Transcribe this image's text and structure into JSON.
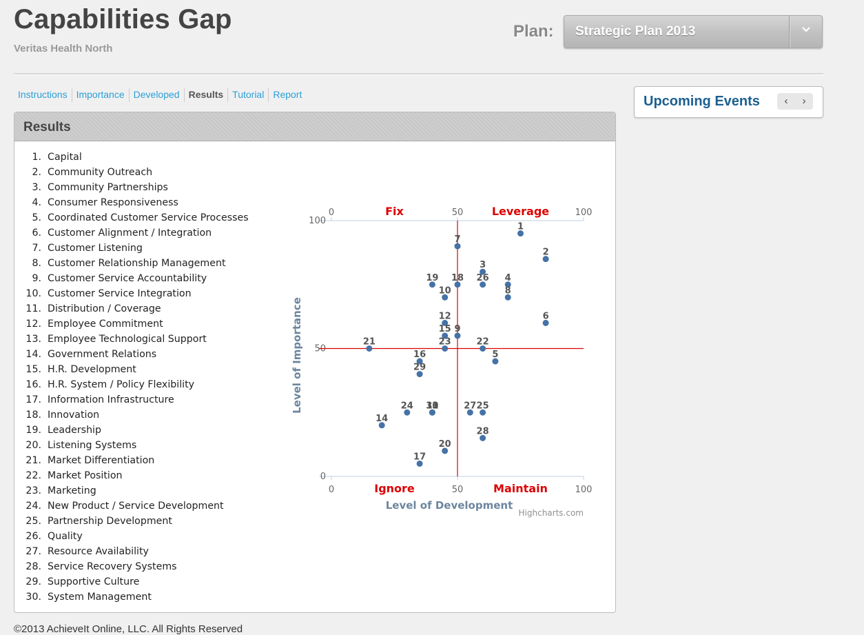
{
  "header": {
    "title": "Capabilities Gap",
    "organization": "Veritas Health North",
    "plan_label": "Plan:",
    "plan_value": "Strategic Plan 2013",
    "plan_chevron_icon": "chevron-down-icon"
  },
  "nav": {
    "tabs": [
      {
        "label": "Instructions"
      },
      {
        "label": "Importance"
      },
      {
        "label": "Developed"
      },
      {
        "label": "Results",
        "active": true
      },
      {
        "label": "Tutorial"
      },
      {
        "label": "Report"
      }
    ]
  },
  "results": {
    "title": "Results",
    "capabilities": [
      {
        "num": "1.",
        "name": "Capital"
      },
      {
        "num": "2.",
        "name": "Community Outreach"
      },
      {
        "num": "3.",
        "name": "Community Partnerships"
      },
      {
        "num": "4.",
        "name": "Consumer Responsiveness"
      },
      {
        "num": "5.",
        "name": "Coordinated Customer Service Processes"
      },
      {
        "num": "6.",
        "name": "Customer Alignment / Integration"
      },
      {
        "num": "7.",
        "name": "Customer Listening"
      },
      {
        "num": "8.",
        "name": "Customer Relationship Management"
      },
      {
        "num": "9.",
        "name": "Customer Service Accountability"
      },
      {
        "num": "10.",
        "name": "Customer Service Integration"
      },
      {
        "num": "11.",
        "name": "Distribution / Coverage"
      },
      {
        "num": "12.",
        "name": "Employee Commitment"
      },
      {
        "num": "13.",
        "name": "Employee Technological Support"
      },
      {
        "num": "14.",
        "name": "Government Relations"
      },
      {
        "num": "15.",
        "name": "H.R. Development"
      },
      {
        "num": "16.",
        "name": "H.R. System / Policy Flexibility"
      },
      {
        "num": "17.",
        "name": "Information Infrastructure"
      },
      {
        "num": "18.",
        "name": "Innovation"
      },
      {
        "num": "19.",
        "name": "Leadership"
      },
      {
        "num": "20.",
        "name": "Listening Systems"
      },
      {
        "num": "21.",
        "name": "Market Differentiation"
      },
      {
        "num": "22.",
        "name": "Market Position"
      },
      {
        "num": "23.",
        "name": "Marketing"
      },
      {
        "num": "24.",
        "name": "New Product / Service Development"
      },
      {
        "num": "25.",
        "name": "Partnership Development"
      },
      {
        "num": "26.",
        "name": "Quality"
      },
      {
        "num": "27.",
        "name": "Resource Availability"
      },
      {
        "num": "28.",
        "name": "Service Recovery Systems"
      },
      {
        "num": "29.",
        "name": "Supportive Culture"
      },
      {
        "num": "30.",
        "name": "System Management"
      }
    ]
  },
  "chart_data": {
    "type": "scatter",
    "title": "",
    "xlabel": "Level of Development",
    "ylabel": "Level of Importance",
    "xlim": [
      0,
      100
    ],
    "ylim": [
      0,
      100
    ],
    "x_ticks": [
      "0",
      "50",
      "100"
    ],
    "y_ticks": [
      "0",
      "50",
      "100"
    ],
    "quadrant_labels": {
      "top_left": "Fix",
      "top_right": "Leverage",
      "bottom_left": "Ignore",
      "bottom_right": "Maintain"
    },
    "divider_x": 50,
    "divider_y": 50,
    "credit": "Highcharts.com",
    "marker_color": "#4572a7",
    "divider_color": "#dd0000",
    "quadrant_label_color": "#dd0000",
    "points": [
      {
        "label": "1",
        "x": 75,
        "y": 95
      },
      {
        "label": "2",
        "x": 85,
        "y": 85
      },
      {
        "label": "3",
        "x": 60,
        "y": 80
      },
      {
        "label": "4",
        "x": 70,
        "y": 75
      },
      {
        "label": "5",
        "x": 65,
        "y": 45
      },
      {
        "label": "6",
        "x": 85,
        "y": 60
      },
      {
        "label": "7",
        "x": 50,
        "y": 90
      },
      {
        "label": "8",
        "x": 70,
        "y": 70
      },
      {
        "label": "9",
        "x": 50,
        "y": 55
      },
      {
        "label": "10",
        "x": 45,
        "y": 70
      },
      {
        "label": "11",
        "x": 40,
        "y": 25
      },
      {
        "label": "12",
        "x": 45,
        "y": 60
      },
      {
        "label": "13",
        "x": 40,
        "y": 25
      },
      {
        "label": "14",
        "x": 20,
        "y": 20
      },
      {
        "label": "15",
        "x": 45,
        "y": 55
      },
      {
        "label": "16",
        "x": 35,
        "y": 45
      },
      {
        "label": "17",
        "x": 35,
        "y": 5
      },
      {
        "label": "18",
        "x": 50,
        "y": 75
      },
      {
        "label": "19",
        "x": 40,
        "y": 75
      },
      {
        "label": "20",
        "x": 45,
        "y": 10
      },
      {
        "label": "21",
        "x": 15,
        "y": 50
      },
      {
        "label": "22",
        "x": 60,
        "y": 50
      },
      {
        "label": "23",
        "x": 45,
        "y": 50
      },
      {
        "label": "24",
        "x": 30,
        "y": 25
      },
      {
        "label": "25",
        "x": 60,
        "y": 25
      },
      {
        "label": "26",
        "x": 60,
        "y": 75
      },
      {
        "label": "27",
        "x": 55,
        "y": 25
      },
      {
        "label": "28",
        "x": 60,
        "y": 15
      },
      {
        "label": "29",
        "x": 35,
        "y": 40
      },
      {
        "label": "30",
        "x": 40,
        "y": 25
      }
    ]
  },
  "events": {
    "title": "Upcoming Events",
    "prev_icon": "chevron-left-icon",
    "next_icon": "chevron-right-icon"
  },
  "footer": {
    "text": "©2013 AchieveIt Online, LLC. All Rights Reserved"
  }
}
